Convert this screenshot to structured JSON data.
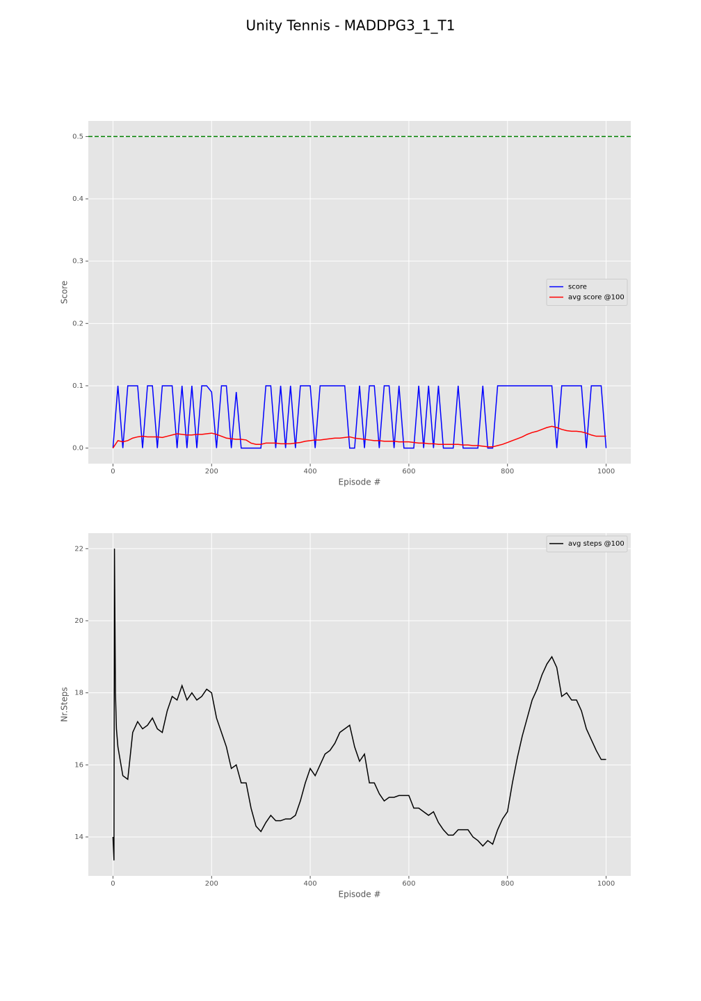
{
  "title": "Unity Tennis - MADDPG3_1_T1",
  "chart_data": [
    {
      "type": "line",
      "xlabel": "Episode #",
      "ylabel": "Score",
      "xlim": [
        -50,
        1050
      ],
      "ylim": [
        -0.025,
        0.525
      ],
      "xticks": [
        0,
        200,
        400,
        600,
        800,
        1000
      ],
      "yticks": [
        {
          "value": 0,
          "label": "0.0"
        },
        0.1,
        0.2,
        0.3,
        0.4,
        0.5
      ],
      "grid": true,
      "legend": "center right",
      "hline": {
        "value": 0.5,
        "color": "#008000",
        "style": "dashed"
      },
      "series": [
        {
          "name": "score",
          "color": "#0000ff",
          "x": [
            0,
            10,
            20,
            30,
            40,
            50,
            60,
            70,
            80,
            90,
            100,
            110,
            120,
            130,
            140,
            150,
            160,
            170,
            180,
            190,
            200,
            210,
            220,
            230,
            240,
            250,
            260,
            270,
            280,
            290,
            300,
            310,
            320,
            330,
            340,
            350,
            360,
            370,
            380,
            390,
            400,
            410,
            420,
            430,
            440,
            450,
            460,
            470,
            480,
            490,
            500,
            510,
            520,
            530,
            540,
            550,
            560,
            570,
            580,
            590,
            600,
            610,
            620,
            630,
            640,
            650,
            660,
            670,
            680,
            690,
            700,
            710,
            720,
            730,
            740,
            750,
            760,
            770,
            780,
            790,
            800,
            810,
            820,
            830,
            840,
            850,
            860,
            870,
            880,
            890,
            900,
            910,
            920,
            930,
            940,
            950,
            960,
            970,
            980,
            990,
            1000
          ],
          "values": [
            0,
            0.1,
            0,
            0.1,
            0.1,
            0.1,
            0,
            0.1,
            0.1,
            0,
            0.1,
            0.1,
            0.1,
            0,
            0.1,
            0,
            0.1,
            0,
            0.1,
            0.1,
            0.09,
            0,
            0.1,
            0.1,
            0,
            0.09,
            0,
            0,
            0,
            0,
            0,
            0.1,
            0.1,
            0,
            0.1,
            0,
            0.1,
            0,
            0.1,
            0.1,
            0.1,
            0,
            0.1,
            0.1,
            0.1,
            0.1,
            0.1,
            0.1,
            0,
            0,
            0.1,
            0,
            0.1,
            0.1,
            0,
            0.1,
            0.1,
            0,
            0.1,
            0,
            0,
            0,
            0.1,
            0,
            0.1,
            0,
            0.1,
            0,
            0,
            0,
            0.1,
            0,
            0,
            0,
            0,
            0.1,
            0,
            0,
            0.1,
            0.1,
            0.1,
            0.1,
            0.1,
            0.1,
            0.1,
            0.1,
            0.1,
            0.1,
            0.1,
            0.1,
            0,
            0.1,
            0.1,
            0.1,
            0.1,
            0.1,
            0,
            0.1,
            0.1,
            0.1,
            0
          ]
        },
        {
          "name": "avg score @100",
          "color": "#ff0000",
          "x": [
            0,
            10,
            20,
            30,
            40,
            50,
            60,
            70,
            80,
            90,
            100,
            110,
            120,
            130,
            140,
            150,
            160,
            170,
            180,
            190,
            200,
            210,
            220,
            230,
            240,
            250,
            260,
            270,
            280,
            290,
            300,
            310,
            320,
            330,
            340,
            350,
            360,
            370,
            380,
            390,
            400,
            410,
            420,
            430,
            440,
            450,
            460,
            470,
            480,
            490,
            500,
            510,
            520,
            530,
            540,
            550,
            560,
            570,
            580,
            590,
            600,
            610,
            620,
            630,
            640,
            650,
            660,
            670,
            680,
            690,
            700,
            710,
            720,
            730,
            740,
            750,
            760,
            770,
            780,
            790,
            800,
            810,
            820,
            830,
            840,
            850,
            860,
            870,
            880,
            890,
            900,
            910,
            920,
            930,
            940,
            950,
            960,
            970,
            980,
            990,
            1000
          ],
          "values": [
            0,
            0.012,
            0.01,
            0.012,
            0.016,
            0.018,
            0.019,
            0.018,
            0.018,
            0.018,
            0.017,
            0.019,
            0.021,
            0.023,
            0.022,
            0.021,
            0.021,
            0.022,
            0.022,
            0.023,
            0.024,
            0.022,
            0.019,
            0.016,
            0.015,
            0.014,
            0.014,
            0.013,
            0.008,
            0.006,
            0.006,
            0.008,
            0.008,
            0.008,
            0.007,
            0.007,
            0.007,
            0.008,
            0.009,
            0.011,
            0.012,
            0.013,
            0.013,
            0.014,
            0.015,
            0.016,
            0.016,
            0.017,
            0.018,
            0.016,
            0.015,
            0.014,
            0.013,
            0.012,
            0.012,
            0.011,
            0.011,
            0.011,
            0.01,
            0.01,
            0.01,
            0.009,
            0.008,
            0.008,
            0.007,
            0.007,
            0.006,
            0.006,
            0.006,
            0.006,
            0.006,
            0.005,
            0.005,
            0.004,
            0.004,
            0.003,
            0.002,
            0.002,
            0.004,
            0.006,
            0.009,
            0.012,
            0.015,
            0.018,
            0.022,
            0.025,
            0.027,
            0.03,
            0.033,
            0.035,
            0.033,
            0.03,
            0.028,
            0.027,
            0.027,
            0.026,
            0.024,
            0.021,
            0.019,
            0.019,
            0.019
          ]
        }
      ]
    },
    {
      "type": "line",
      "xlabel": "Episode #",
      "ylabel": "Nr.Steps",
      "xlim": [
        -50,
        1050
      ],
      "ylim": [
        12.92,
        22.43
      ],
      "xticks": [
        0,
        200,
        400,
        600,
        800,
        1000
      ],
      "yticks": [
        14,
        16,
        18,
        20,
        22
      ],
      "grid": true,
      "legend": "upper right",
      "series": [
        {
          "name": "avg steps @100",
          "color": "#000000",
          "x": [
            0,
            2,
            3,
            5,
            7,
            10,
            20,
            30,
            40,
            50,
            60,
            70,
            80,
            90,
            100,
            110,
            120,
            130,
            140,
            150,
            160,
            170,
            180,
            190,
            200,
            210,
            220,
            230,
            240,
            250,
            260,
            270,
            280,
            290,
            300,
            310,
            320,
            330,
            340,
            350,
            360,
            370,
            380,
            390,
            400,
            410,
            420,
            430,
            440,
            450,
            460,
            470,
            480,
            490,
            500,
            510,
            520,
            530,
            540,
            550,
            560,
            570,
            580,
            590,
            600,
            610,
            620,
            630,
            640,
            650,
            660,
            670,
            680,
            690,
            700,
            710,
            720,
            730,
            740,
            750,
            760,
            770,
            780,
            790,
            800,
            810,
            820,
            830,
            840,
            850,
            860,
            870,
            880,
            890,
            900,
            910,
            920,
            930,
            940,
            950,
            960,
            970,
            980,
            990,
            1000
          ],
          "values": [
            14,
            13.35,
            22,
            18,
            17,
            16.5,
            15.7,
            15.6,
            16.9,
            17.2,
            17.0,
            17.1,
            17.3,
            17.0,
            16.9,
            17.5,
            17.9,
            17.8,
            18.2,
            17.8,
            18.0,
            17.8,
            17.9,
            18.1,
            18.0,
            17.3,
            16.9,
            16.5,
            15.9,
            16.0,
            15.5,
            15.5,
            14.8,
            14.3,
            14.15,
            14.4,
            14.6,
            14.45,
            14.45,
            14.5,
            14.5,
            14.6,
            15.0,
            15.5,
            15.9,
            15.7,
            16.0,
            16.3,
            16.4,
            16.6,
            16.9,
            17.0,
            17.1,
            16.5,
            16.1,
            16.3,
            15.5,
            15.5,
            15.2,
            15.0,
            15.1,
            15.1,
            15.15,
            15.15,
            15.15,
            14.8,
            14.8,
            14.7,
            14.6,
            14.7,
            14.4,
            14.2,
            14.05,
            14.05,
            14.2,
            14.2,
            14.2,
            14.0,
            13.9,
            13.75,
            13.9,
            13.8,
            14.2,
            14.5,
            14.7,
            15.5,
            16.2,
            16.8,
            17.3,
            17.8,
            18.1,
            18.5,
            18.8,
            19.0,
            18.7,
            17.9,
            18.0,
            17.8,
            17.8,
            17.5,
            17.0,
            16.7,
            16.4,
            16.15,
            16.15
          ]
        }
      ]
    }
  ]
}
